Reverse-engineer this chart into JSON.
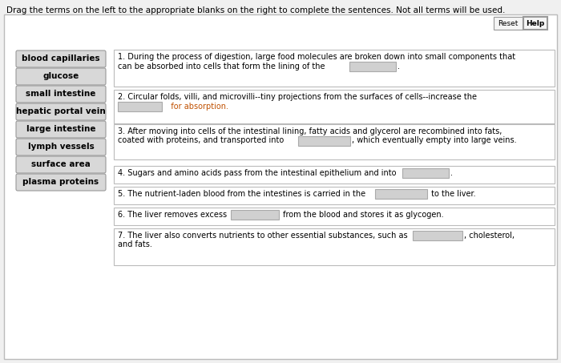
{
  "title": "Drag the terms on the left to the appropriate blanks on the right to complete the sentences. Not all terms will be used.",
  "bg_color": "#f0f0f0",
  "outer_border_color": "#bbbbbb",
  "panel_bg": "#ffffff",
  "term_bg": "#d8d8d8",
  "term_border": "#999999",
  "blank_bg": "#d0d0d0",
  "blank_border": "#aaaaaa",
  "sentence_bg": "#ffffff",
  "sentence_border": "#bbbbbb",
  "button_bg": "#f5f5f5",
  "button_border": "#999999",
  "terms": [
    "blood capillaries",
    "glucose",
    "small intestine",
    "hepatic portal vein",
    "large intestine",
    "lymph vessels",
    "surface area",
    "plasma proteins"
  ],
  "reset_label": "Reset",
  "help_label": "Help",
  "absorption_color": "#c05000",
  "text_color": "#000000",
  "font_size": 7.0,
  "title_font_size": 7.5,
  "term_font_size": 7.5
}
